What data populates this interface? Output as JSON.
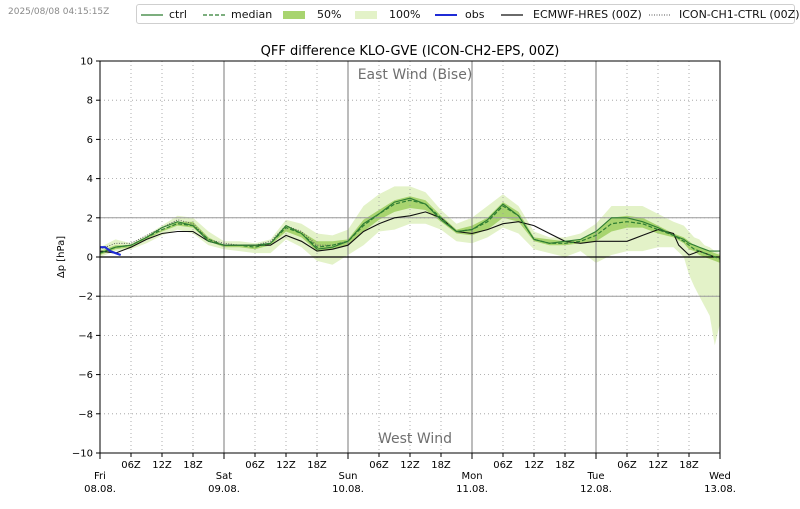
{
  "timestamp": "2025/08/08 04:15:15Z",
  "legend": {
    "ctrl": "ctrl",
    "median": "median",
    "p50": "50%",
    "p100": "100%",
    "obs": "obs",
    "ecmwf": "ECMWF-HRES (00Z)",
    "icon_ch1": "ICON-CH1-CTRL (00Z)"
  },
  "colors": {
    "ctrl": "#2e7d32",
    "median": "#2e7d32",
    "band50": "#a8d46f",
    "band100": "#e3f2c8",
    "obs": "#1f2bd6",
    "ecmwf": "#111111",
    "icon_ch1": "#555555",
    "gridline": "#9a9a9a",
    "annotation": "#6f6f6f"
  },
  "chart_data": {
    "type": "line",
    "title": "QFF difference KLO-GVE (ICON-CH2-EPS, 00Z)",
    "ylabel": "Δp [hPa]",
    "xlabel": "",
    "ylim": [
      -10,
      10
    ],
    "xlim_hours": [
      0,
      120
    ],
    "y_ticks": [
      10,
      8,
      6,
      4,
      2,
      0,
      -2,
      -4,
      -6,
      -8,
      -10
    ],
    "y_tick_labels": [
      "10",
      "8",
      "6",
      "4",
      "2",
      "0",
      "−2",
      "−4",
      "−6",
      "−8",
      "−10"
    ],
    "day_labels": [
      {
        "h": 0,
        "day": "Fri",
        "date": "08.08."
      },
      {
        "h": 24,
        "day": "Sat",
        "date": "09.08."
      },
      {
        "h": 48,
        "day": "Sun",
        "date": "10.08."
      },
      {
        "h": 72,
        "day": "Mon",
        "date": "11.08."
      },
      {
        "h": 96,
        "day": "Tue",
        "date": "12.08."
      },
      {
        "h": 120,
        "day": "Wed",
        "date": "13.08."
      }
    ],
    "hour_ticks": [
      {
        "h": 6,
        "label": "06Z"
      },
      {
        "h": 12,
        "label": "12Z"
      },
      {
        "h": 18,
        "label": "18Z"
      },
      {
        "h": 30,
        "label": "06Z"
      },
      {
        "h": 36,
        "label": "12Z"
      },
      {
        "h": 42,
        "label": "18Z"
      },
      {
        "h": 54,
        "label": "06Z"
      },
      {
        "h": 60,
        "label": "12Z"
      },
      {
        "h": 66,
        "label": "18Z"
      },
      {
        "h": 78,
        "label": "06Z"
      },
      {
        "h": 84,
        "label": "12Z"
      },
      {
        "h": 90,
        "label": "18Z"
      },
      {
        "h": 102,
        "label": "06Z"
      },
      {
        "h": 108,
        "label": "12Z"
      },
      {
        "h": 114,
        "label": "18Z"
      }
    ],
    "annotations": {
      "top": "East Wind (Bise)",
      "bottom": "West Wind"
    },
    "hlines_grey": [
      2,
      -2
    ],
    "zero_line": 0,
    "series": {
      "band100": {
        "x": [
          0,
          3,
          6,
          9,
          12,
          15,
          18,
          21,
          24,
          27,
          30,
          33,
          36,
          39,
          42,
          45,
          48,
          51,
          54,
          57,
          60,
          63,
          66,
          69,
          72,
          75,
          78,
          81,
          84,
          87,
          90,
          93,
          96,
          99,
          102,
          105,
          108,
          111,
          113,
          114,
          115,
          116,
          117,
          118,
          119,
          120
        ],
        "low": [
          0.0,
          0.3,
          0.4,
          0.7,
          1.1,
          1.4,
          1.2,
          0.6,
          0.4,
          0.3,
          0.2,
          0.2,
          0.9,
          0.5,
          -0.2,
          -0.4,
          0.1,
          0.6,
          1.3,
          1.4,
          1.7,
          1.7,
          1.4,
          0.8,
          0.7,
          1.0,
          1.5,
          1.2,
          0.4,
          0.2,
          0.0,
          0.3,
          -0.3,
          0.1,
          0.3,
          0.3,
          0.5,
          0.5,
          0.0,
          -0.9,
          -1.5,
          -2.0,
          -2.5,
          -3.0,
          -4.5,
          -3.4
        ],
        "high": [
          0.5,
          0.9,
          0.7,
          1.1,
          1.6,
          2.1,
          2.0,
          1.3,
          0.8,
          0.8,
          0.7,
          0.9,
          1.9,
          1.7,
          1.2,
          1.1,
          1.4,
          2.6,
          3.2,
          3.6,
          3.6,
          3.3,
          2.4,
          1.7,
          2.0,
          2.6,
          3.2,
          2.6,
          1.3,
          1.0,
          1.0,
          1.2,
          1.7,
          2.6,
          2.6,
          2.6,
          2.2,
          1.8,
          1.6,
          1.3,
          1.0,
          0.9,
          0.6,
          0.5,
          0.3,
          0.2
        ]
      },
      "band50": {
        "x": [
          0,
          3,
          6,
          9,
          12,
          15,
          18,
          21,
          24,
          27,
          30,
          33,
          36,
          39,
          42,
          45,
          48,
          51,
          54,
          57,
          60,
          63,
          66,
          69,
          72,
          75,
          78,
          81,
          84,
          87,
          90,
          93,
          96,
          99,
          102,
          105,
          108,
          111,
          113,
          114,
          115,
          116,
          117,
          118,
          119,
          120
        ],
        "low": [
          0.1,
          0.4,
          0.5,
          0.9,
          1.3,
          1.6,
          1.5,
          0.8,
          0.5,
          0.5,
          0.4,
          0.6,
          1.3,
          1.0,
          0.3,
          0.4,
          0.6,
          1.3,
          1.9,
          2.3,
          2.5,
          2.4,
          1.8,
          1.2,
          1.1,
          1.4,
          2.0,
          1.8,
          0.8,
          0.6,
          0.6,
          0.7,
          0.8,
          1.3,
          1.5,
          1.5,
          1.2,
          1.0,
          0.7,
          0.4,
          0.3,
          0.1,
          0.0,
          -0.1,
          -0.2,
          -0.3
        ],
        "high": [
          0.3,
          0.6,
          0.6,
          1.0,
          1.4,
          1.8,
          1.8,
          1.0,
          0.6,
          0.6,
          0.6,
          0.7,
          1.6,
          1.3,
          0.8,
          0.8,
          0.9,
          1.9,
          2.4,
          2.9,
          3.1,
          2.9,
          2.1,
          1.4,
          1.6,
          2.0,
          2.8,
          2.3,
          1.0,
          0.9,
          0.8,
          0.9,
          1.3,
          2.0,
          2.1,
          2.0,
          1.6,
          1.2,
          1.0,
          0.8,
          0.6,
          0.5,
          0.4,
          0.3,
          0.2,
          0.1
        ]
      },
      "median": {
        "x": [
          0,
          3,
          6,
          9,
          12,
          15,
          18,
          21,
          24,
          27,
          30,
          33,
          36,
          39,
          42,
          45,
          48,
          51,
          54,
          57,
          60,
          63,
          66,
          69,
          72,
          75,
          78,
          81,
          84,
          87,
          90,
          93,
          96,
          99,
          102,
          105,
          108,
          111,
          113,
          114,
          115,
          116,
          117,
          118,
          119,
          120
        ],
        "y": [
          0.2,
          0.5,
          0.6,
          1.0,
          1.4,
          1.7,
          1.6,
          0.9,
          0.6,
          0.6,
          0.5,
          0.7,
          1.5,
          1.2,
          0.5,
          0.6,
          0.8,
          1.6,
          2.2,
          2.7,
          2.9,
          2.7,
          2.0,
          1.3,
          1.4,
          1.8,
          2.6,
          2.1,
          0.9,
          0.7,
          0.7,
          0.8,
          1.1,
          1.7,
          1.8,
          1.7,
          1.4,
          1.1,
          0.8,
          0.6,
          0.4,
          0.3,
          0.2,
          0.1,
          0.0,
          -0.1
        ]
      },
      "ctrl": {
        "x": [
          0,
          3,
          6,
          9,
          12,
          15,
          18,
          21,
          24,
          27,
          30,
          33,
          36,
          39,
          42,
          45,
          48,
          51,
          54,
          57,
          60,
          63,
          66,
          69,
          72,
          75,
          78,
          81,
          84,
          87,
          90,
          93,
          96,
          99,
          102,
          105,
          108,
          111,
          113,
          114,
          115,
          116,
          117,
          118,
          119,
          120
        ],
        "y": [
          0.2,
          0.5,
          0.6,
          1.0,
          1.5,
          1.8,
          1.6,
          0.8,
          0.6,
          0.6,
          0.6,
          0.7,
          1.6,
          1.2,
          0.4,
          0.5,
          0.8,
          1.7,
          2.2,
          2.8,
          3.0,
          2.7,
          1.9,
          1.3,
          1.4,
          1.9,
          2.7,
          2.1,
          0.9,
          0.7,
          0.8,
          0.9,
          1.3,
          2.0,
          2.0,
          1.8,
          1.5,
          1.1,
          0.9,
          0.7,
          0.6,
          0.5,
          0.4,
          0.3,
          0.3,
          0.3
        ]
      },
      "ecmwf": {
        "x": [
          0,
          3,
          6,
          9,
          12,
          15,
          18,
          21,
          24,
          27,
          30,
          33,
          36,
          39,
          42,
          45,
          48,
          51,
          54,
          57,
          60,
          63,
          66,
          69,
          72,
          75,
          78,
          81,
          84,
          87,
          90,
          93,
          96,
          99,
          102,
          105,
          108,
          111,
          112,
          114,
          115,
          116,
          117,
          118,
          119,
          120
        ],
        "y": [
          0.3,
          0.2,
          0.5,
          0.9,
          1.2,
          1.3,
          1.3,
          0.8,
          0.6,
          0.6,
          0.6,
          0.6,
          1.1,
          0.8,
          0.3,
          0.4,
          0.6,
          1.3,
          1.7,
          2.0,
          2.1,
          2.3,
          2.0,
          1.3,
          1.2,
          1.4,
          1.7,
          1.8,
          1.6,
          1.2,
          0.8,
          0.7,
          0.8,
          0.8,
          0.8,
          1.1,
          1.4,
          1.2,
          0.6,
          0.1,
          0.2,
          0.3,
          0.2,
          0.1,
          0.0,
          0.0
        ]
      },
      "icon_ch1": {
        "x": [
          0,
          3,
          6,
          9,
          12,
          15,
          18,
          21,
          24,
          27,
          30,
          33,
          36,
          39,
          42,
          45,
          48
        ],
        "y": [
          0.4,
          0.7,
          0.7,
          1.1,
          1.5,
          1.9,
          1.7,
          0.9,
          0.7,
          0.6,
          0.6,
          0.8,
          1.6,
          1.3,
          0.6,
          0.6,
          0.8
        ]
      },
      "obs": {
        "x": [
          0,
          1,
          2,
          3,
          4
        ],
        "y": [
          0.5,
          0.5,
          0.3,
          0.2,
          0.1
        ]
      }
    }
  }
}
